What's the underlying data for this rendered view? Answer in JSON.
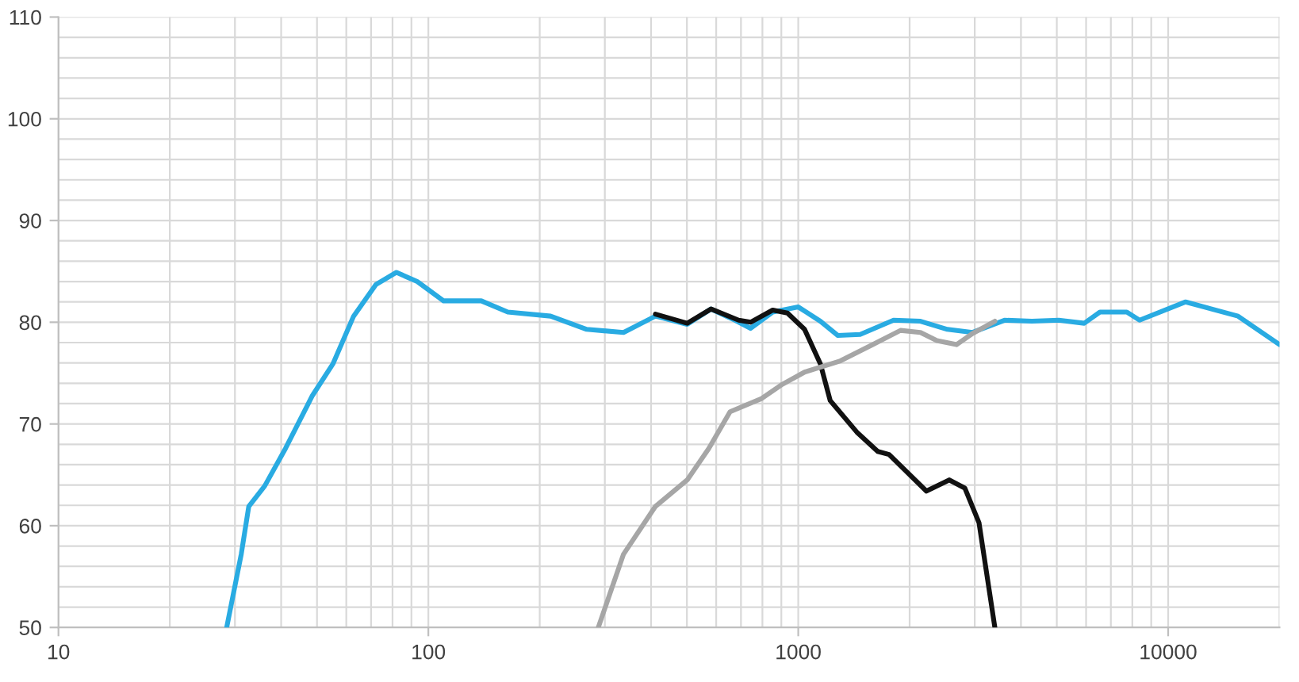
{
  "chart_data": {
    "type": "line",
    "log": "x",
    "xlim": [
      10,
      20000
    ],
    "ylim": [
      50,
      110
    ],
    "xticks": [
      10,
      100,
      1000,
      10000
    ],
    "yticks": [
      50,
      60,
      70,
      80,
      90,
      100,
      110
    ],
    "grid": true,
    "legend": false,
    "marker": "none",
    "line_style": "solid",
    "series": [
      {
        "color": "#29abe2",
        "x": [
          28.5,
          31.2,
          32.7,
          36.1,
          41.1,
          48.6,
          55.2,
          62.8,
          72.1,
          82,
          93.3,
          110,
          139,
          164,
          214,
          268,
          337,
          411,
          501,
          581,
          674,
          743,
          853,
          1000,
          1148,
          1280,
          1470,
          1810,
          2140,
          2530,
          2960,
          3610,
          4280,
          5060,
          5930,
          6540,
          7730,
          8370,
          11150,
          15450,
          20000
        ],
        "values": [
          50,
          57.2,
          61.9,
          63.9,
          67.6,
          72.8,
          75.9,
          80.6,
          83.7,
          84.9,
          84.0,
          82.1,
          82.1,
          81.0,
          80.6,
          79.3,
          79.0,
          80.6,
          79.8,
          81.3,
          80.2,
          79.4,
          81.0,
          81.5,
          80.1,
          78.7,
          78.8,
          80.2,
          80.1,
          79.3,
          79.0,
          80.2,
          80.1,
          80.2,
          79.9,
          81.0,
          81.0,
          80.2,
          82.0,
          80.6,
          77.8
        ]
      },
      {
        "color": "#111111",
        "x": [
          411,
          501,
          581,
          690,
          743,
          853,
          935,
          1040,
          1148,
          1220,
          1440,
          1640,
          1760,
          2220,
          2560,
          2820,
          3080,
          3400
        ],
        "values": [
          80.8,
          79.9,
          81.3,
          80.2,
          80.0,
          81.2,
          80.9,
          79.3,
          75.9,
          72.3,
          69.2,
          67.3,
          67.0,
          63.4,
          64.5,
          63.7,
          60.3,
          50
        ]
      },
      {
        "color": "#a6a6a6",
        "x": [
          288,
          337,
          411,
          501,
          573,
          654,
          796,
          906,
          1040,
          1300,
          1590,
          1890,
          2140,
          2370,
          2680,
          2960,
          3400
        ],
        "values": [
          50,
          57.2,
          61.9,
          64.5,
          67.6,
          71.2,
          72.5,
          73.9,
          75.1,
          76.2,
          77.8,
          79.2,
          79.0,
          78.2,
          77.8,
          78.9,
          80.1
        ]
      }
    ]
  }
}
